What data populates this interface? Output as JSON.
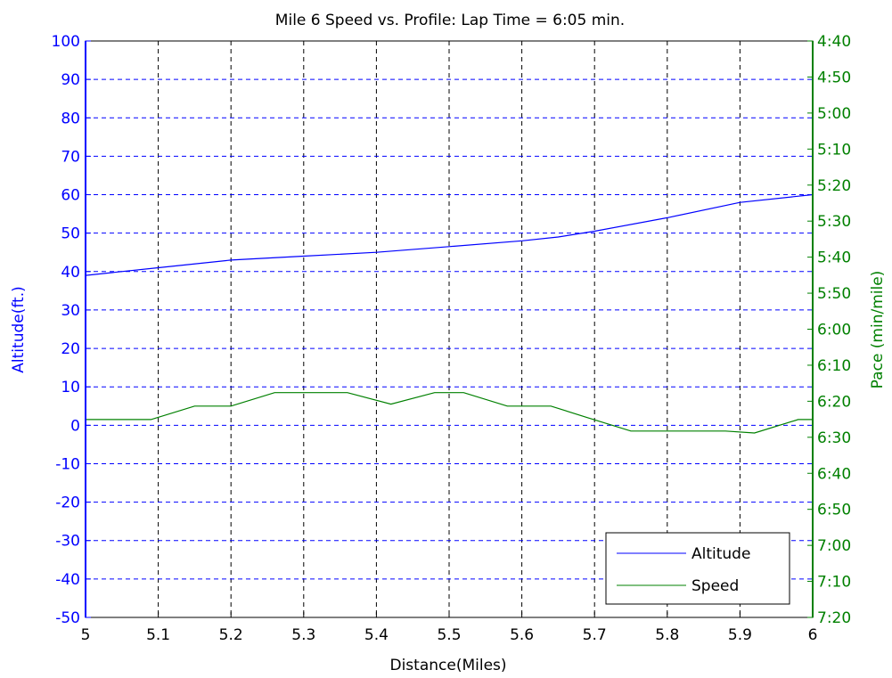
{
  "chart_data": {
    "type": "line",
    "title": "Mile 6 Speed vs. Profile:  Lap Time = 6:05 min.",
    "xlabel": "Distance(Miles)",
    "ylabel_left": "Altitude(ft.)",
    "ylabel_right": "Pace (min/mile)",
    "xlim": [
      5,
      6
    ],
    "ylim_left": [
      -50,
      100
    ],
    "x_ticks": [
      "5",
      "5.1",
      "5.2",
      "5.3",
      "5.4",
      "5.5",
      "5.6",
      "5.7",
      "5.8",
      "5.9",
      "6"
    ],
    "y_ticks_left": [
      "-50",
      "-40",
      "-30",
      "-20",
      "-10",
      "0",
      "10",
      "20",
      "30",
      "40",
      "50",
      "60",
      "70",
      "80",
      "90",
      "100"
    ],
    "y_ticks_right": [
      "4:40",
      "4:50",
      "5:00",
      "5:10",
      "5:20",
      "5:30",
      "5:40",
      "5:50",
      "6:00",
      "6:10",
      "6:20",
      "6:30",
      "6:40",
      "6:50",
      "7:00",
      "7:10",
      "7:20"
    ],
    "grid": true,
    "legend_position": "bottom-right",
    "series": [
      {
        "name": "Altitude",
        "axis": "left",
        "color": "#0000ff",
        "x": [
          5.0,
          5.1,
          5.2,
          5.3,
          5.4,
          5.5,
          5.6,
          5.65,
          5.7,
          5.8,
          5.9,
          6.0
        ],
        "y": [
          39,
          41,
          43,
          44,
          45,
          46.5,
          48,
          49,
          50.5,
          54,
          58,
          60
        ]
      },
      {
        "name": "Speed",
        "axis": "left",
        "color": "#008000",
        "x": [
          5.0,
          5.09,
          5.15,
          5.2,
          5.26,
          5.36,
          5.42,
          5.48,
          5.52,
          5.58,
          5.64,
          5.69,
          5.75,
          5.88,
          5.92,
          5.98,
          6.0
        ],
        "y": [
          1.5,
          1.5,
          5,
          5,
          8.5,
          8.5,
          5.5,
          8.5,
          8.5,
          5,
          5,
          2,
          -1.5,
          -1.5,
          -2,
          1.5,
          1.5
        ]
      }
    ]
  }
}
